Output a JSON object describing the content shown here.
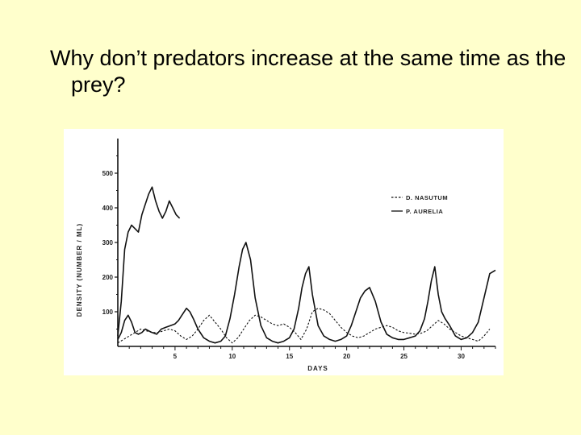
{
  "slide": {
    "title": "Why don’t predators increase at the same time as the prey?"
  },
  "chart_data": {
    "type": "line",
    "title": "",
    "xlabel": "DAYS",
    "ylabel": "DENSITY (NUMBER / ML)",
    "xlim": [
      0,
      33
    ],
    "ylim": [
      0,
      600
    ],
    "x_ticks": [
      5,
      10,
      15,
      20,
      25,
      30
    ],
    "y_ticks": [
      100,
      200,
      300,
      400,
      500
    ],
    "legend_position": "top-right",
    "grid": false,
    "series": [
      {
        "name": "D. NASUTUM",
        "style": "dashed",
        "color": "#111111",
        "x": [
          0,
          0.5,
          1,
          1.5,
          2,
          2.5,
          3,
          3.5,
          4,
          4.5,
          5,
          5.5,
          6,
          6.5,
          7,
          7.5,
          8,
          8.5,
          9,
          9.5,
          10,
          10.5,
          11,
          11.5,
          12,
          12.5,
          13,
          13.5,
          14,
          14.5,
          15,
          15.5,
          16,
          16.5,
          17,
          17.5,
          18,
          18.5,
          19,
          19.5,
          20,
          20.5,
          21,
          21.5,
          22,
          22.5,
          23,
          23.5,
          24,
          24.5,
          25,
          25.5,
          26,
          26.5,
          27,
          27.5,
          28,
          28.5,
          29,
          29.5,
          30,
          30.5,
          31,
          31.5,
          32,
          32.5
        ],
        "values": [
          10,
          20,
          30,
          40,
          50,
          45,
          40,
          40,
          45,
          50,
          45,
          30,
          20,
          30,
          50,
          75,
          90,
          70,
          50,
          25,
          10,
          25,
          50,
          75,
          90,
          85,
          75,
          65,
          60,
          65,
          55,
          40,
          20,
          50,
          100,
          110,
          105,
          95,
          75,
          55,
          40,
          30,
          25,
          30,
          40,
          50,
          55,
          60,
          55,
          45,
          40,
          38,
          35,
          38,
          45,
          60,
          75,
          65,
          50,
          40,
          30,
          25,
          20,
          15,
          30,
          50
        ]
      },
      {
        "name": "P. AURELIA",
        "style": "solid",
        "color": "#111111",
        "x": [
          0,
          0.3,
          0.6,
          0.9,
          1.2,
          1.5,
          1.8,
          2.1,
          2.4,
          2.7,
          3.0,
          3.3,
          3.6,
          3.9,
          4.2,
          4.5,
          4.8,
          5.1,
          5.4
        ],
        "values": [
          30,
          130,
          280,
          330,
          350,
          340,
          330,
          380,
          410,
          440,
          460,
          420,
          390,
          370,
          390,
          420,
          400,
          380,
          370
        ]
      },
      {
        "name": "P. AURELIA",
        "style": "solid",
        "color": "#111111",
        "x": [
          0,
          0.3,
          0.6,
          0.9,
          1.2,
          1.5,
          1.8,
          2.1,
          2.4,
          2.7,
          3.0,
          3.4,
          3.8,
          4.2,
          4.6,
          5.0,
          5.3,
          5.6,
          6.0,
          6.3,
          6.6,
          7.0,
          7.5,
          8.0,
          8.5,
          9.0,
          9.4,
          9.8,
          10.2,
          10.6,
          10.9,
          11.2,
          11.6,
          12.0,
          12.5,
          13.0,
          13.5,
          14.0,
          14.5,
          15.0,
          15.4,
          15.8,
          16.1,
          16.4,
          16.7,
          17.0,
          17.5,
          18.0,
          18.5,
          19.0,
          19.5,
          20.0,
          20.4,
          20.8,
          21.2,
          21.6,
          22.0,
          22.5,
          23.0,
          23.5,
          24.0,
          24.5,
          25.0,
          25.5,
          26.0,
          26.4,
          26.8,
          27.1,
          27.4,
          27.7,
          28.0,
          28.3,
          28.6,
          29.0,
          29.5,
          30.0,
          30.5,
          31.0,
          31.5,
          32.0,
          32.5,
          33.0
        ],
        "values": [
          20,
          40,
          75,
          90,
          70,
          40,
          35,
          40,
          50,
          45,
          40,
          35,
          50,
          55,
          60,
          65,
          75,
          90,
          110,
          100,
          80,
          50,
          25,
          15,
          10,
          15,
          30,
          80,
          150,
          230,
          280,
          300,
          250,
          140,
          60,
          25,
          15,
          10,
          15,
          25,
          50,
          110,
          170,
          210,
          230,
          150,
          60,
          30,
          20,
          15,
          20,
          30,
          60,
          100,
          140,
          160,
          170,
          130,
          70,
          35,
          25,
          20,
          20,
          25,
          30,
          45,
          80,
          130,
          190,
          230,
          150,
          100,
          80,
          60,
          30,
          20,
          25,
          40,
          70,
          140,
          210,
          220
        ]
      }
    ]
  }
}
